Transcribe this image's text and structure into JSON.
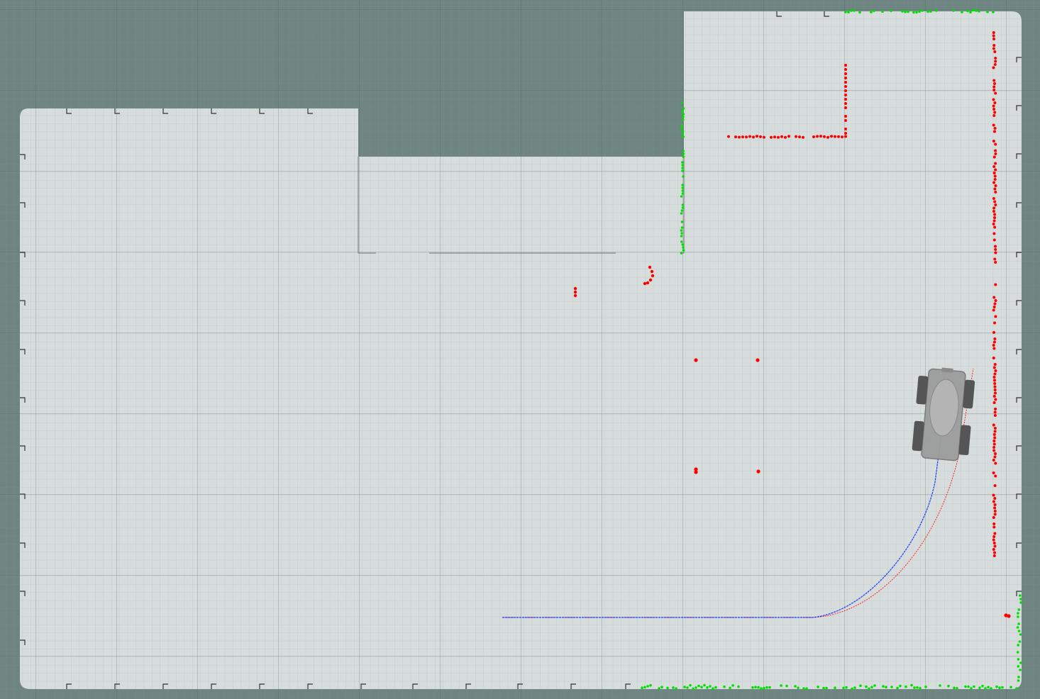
{
  "app": {
    "view": "3D map viewport"
  },
  "colors": {
    "background": "#6e8582",
    "background_grid_minor": "#7a908d",
    "background_grid_major": "#5e7370",
    "map_free_space": "#d7dcdc",
    "map_grid_minor": "#b9c4c4",
    "map_grid_major": "#8f9a9a",
    "obstacle_points": "#ff0000",
    "lidar_points": "#00e000",
    "planned_path": "#1a3cff",
    "executed_path": "#ff2020",
    "robot_body": "#9c9c9c",
    "robot_wheels": "#555555"
  },
  "icons": {
    "robot": "robot-rover-icon"
  },
  "layers": {
    "map": "occupancy-map",
    "obstacles": "obstacle-markers",
    "lidar": "lidar-scan",
    "paths": [
      "planned-path",
      "executed-path"
    ]
  }
}
